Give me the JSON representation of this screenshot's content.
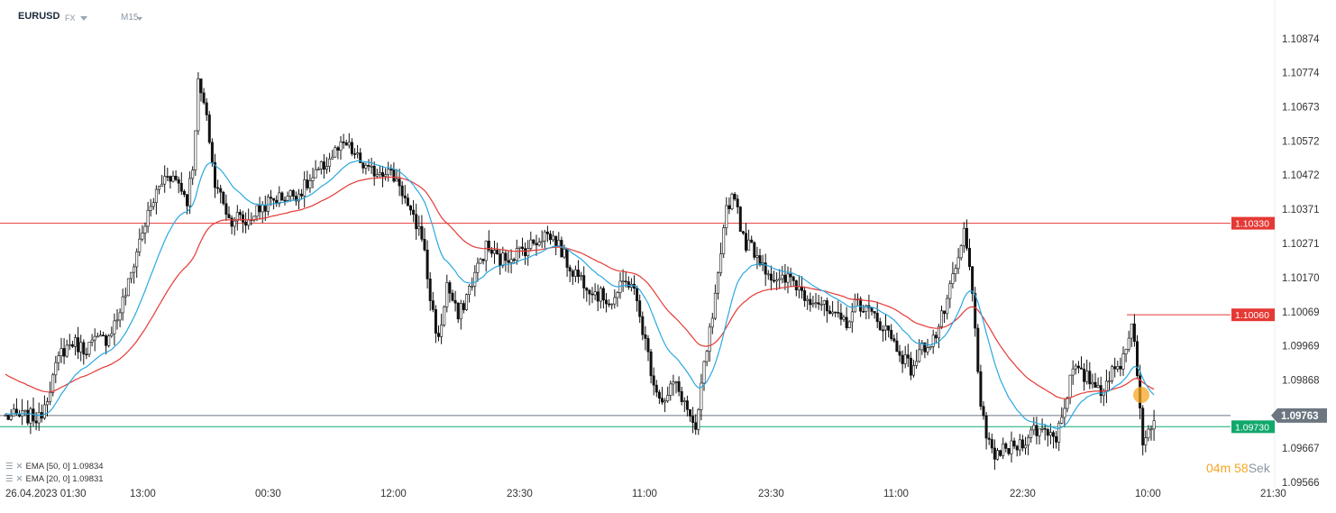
{
  "header": {
    "symbol": "EURUSD",
    "market": "FX",
    "timeframe": "M15"
  },
  "legend": [
    {
      "label": "EMA [50, 0] 1.09834",
      "color": "#e53935"
    },
    {
      "label": "EMA [20, 0] 1.09831",
      "color": "#29a8e0"
    }
  ],
  "timer": {
    "minutes": "04",
    "min_unit": "m",
    "seconds": "58",
    "sec_unit": "Sek"
  },
  "colors": {
    "candle": "#111111",
    "ema50": "#e53935",
    "ema20": "#29a8e0",
    "resistance": "#e53935",
    "support": "#11a86b",
    "current": "#6b7680",
    "marker": "#f5a623"
  },
  "chart_data": {
    "type": "candlestick",
    "symbol": "EURUSD",
    "timeframe": "M15",
    "ylim": [
      1.09566,
      1.1095
    ],
    "y_ticks": [
      "1.10874",
      "1.10774",
      "1.10673",
      "1.10572",
      "1.10472",
      "1.10371",
      "1.10271",
      "1.10170",
      "1.10069",
      "1.09969",
      "1.09868",
      "1.09667",
      "1.09566"
    ],
    "x_ticks": [
      "26.04.2023  01:30",
      "13:00",
      "00:30",
      "12:00",
      "23:30",
      "11:00",
      "23:30",
      "11:00",
      "22:30",
      "10:00",
      "21:30"
    ],
    "levels": [
      {
        "name": "resistance",
        "label": "1.10330",
        "value": 1.1033,
        "color": "#e53935"
      },
      {
        "name": "short-resistance",
        "label": "1.10060",
        "value": 1.1006,
        "color": "#e53935"
      },
      {
        "name": "current-price",
        "label": "1.09763",
        "value": 1.09763,
        "color": "#6b7680"
      },
      {
        "name": "support",
        "label": "1.09730",
        "value": 1.0973,
        "color": "#11a86b"
      }
    ],
    "close_anchors": [
      [
        0,
        1.0976
      ],
      [
        10,
        1.0976
      ],
      [
        12,
        1.0975
      ],
      [
        16,
        1.0985
      ],
      [
        20,
        1.0995
      ],
      [
        24,
        1.0998
      ],
      [
        28,
        1.0996
      ],
      [
        32,
        1.0998
      ],
      [
        36,
        1.0999
      ],
      [
        40,
        1.1005
      ],
      [
        44,
        1.1015
      ],
      [
        48,
        1.1028
      ],
      [
        50,
        1.1033
      ],
      [
        54,
        1.1042
      ],
      [
        58,
        1.1048
      ],
      [
        62,
        1.1045
      ],
      [
        65,
        1.104
      ],
      [
        67,
        1.105
      ],
      [
        69,
        1.1074
      ],
      [
        71,
        1.1068
      ],
      [
        73,
        1.1058
      ],
      [
        75,
        1.1044
      ],
      [
        78,
        1.104
      ],
      [
        80,
        1.1034
      ],
      [
        83,
        1.1035
      ],
      [
        86,
        1.1033
      ],
      [
        89,
        1.1036
      ],
      [
        92,
        1.1038
      ],
      [
        96,
        1.104
      ],
      [
        100,
        1.1041
      ],
      [
        105,
        1.1042
      ],
      [
        110,
        1.1046
      ],
      [
        114,
        1.105
      ],
      [
        118,
        1.1054
      ],
      [
        122,
        1.1056
      ],
      [
        126,
        1.1052
      ],
      [
        130,
        1.1048
      ],
      [
        136,
        1.1049
      ],
      [
        141,
        1.1045
      ],
      [
        145,
        1.1035
      ],
      [
        149,
        1.103
      ],
      [
        152,
        1.1011
      ],
      [
        155,
        1.0998
      ],
      [
        158,
        1.1015
      ],
      [
        162,
        1.1005
      ],
      [
        167,
        1.1016
      ],
      [
        172,
        1.1026
      ],
      [
        177,
        1.1022
      ],
      [
        182,
        1.1024
      ],
      [
        187,
        1.1026
      ],
      [
        193,
        1.103
      ],
      [
        197,
        1.1028
      ],
      [
        202,
        1.102
      ],
      [
        207,
        1.1016
      ],
      [
        212,
        1.1012
      ],
      [
        217,
        1.101
      ],
      [
        221,
        1.1015
      ],
      [
        224,
        1.1016
      ],
      [
        228,
        1.1002
      ],
      [
        231,
        1.099
      ],
      [
        233,
        1.0984
      ],
      [
        236,
        1.098
      ],
      [
        239,
        1.0986
      ],
      [
        242,
        1.0982
      ],
      [
        245,
        1.0976
      ],
      [
        247,
        1.097
      ],
      [
        249,
        1.0985
      ],
      [
        251,
        1.0996
      ],
      [
        253,
        1.1005
      ],
      [
        256,
        1.1022
      ],
      [
        258,
        1.1038
      ],
      [
        261,
        1.1042
      ],
      [
        264,
        1.1028
      ],
      [
        268,
        1.1025
      ],
      [
        272,
        1.102
      ],
      [
        276,
        1.1015
      ],
      [
        281,
        1.1017
      ],
      [
        286,
        1.1012
      ],
      [
        291,
        1.101
      ],
      [
        296,
        1.1005
      ],
      [
        301,
        1.1004
      ],
      [
        305,
        1.101
      ],
      [
        310,
        1.1006
      ],
      [
        315,
        1.1002
      ],
      [
        320,
        1.0995
      ],
      [
        324,
        1.099
      ],
      [
        328,
        1.0996
      ],
      [
        333,
        1.1
      ],
      [
        337,
        1.101
      ],
      [
        341,
        1.1022
      ],
      [
        343,
        1.103
      ],
      [
        345,
        1.102
      ],
      [
        347,
        1.1002
      ],
      [
        349,
        1.098
      ],
      [
        351,
        1.0968
      ],
      [
        354,
        1.0965
      ],
      [
        358,
        1.0966
      ],
      [
        363,
        1.0968
      ],
      [
        368,
        1.0972
      ],
      [
        373,
        1.0972
      ],
      [
        376,
        1.097
      ],
      [
        379,
        1.098
      ],
      [
        382,
        1.099
      ],
      [
        385,
        1.0988
      ],
      [
        388,
        1.0987
      ],
      [
        392,
        1.0984
      ],
      [
        395,
        1.0988
      ],
      [
        398,
        1.099
      ],
      [
        401,
        1.0996
      ],
      [
        403,
        1.1005
      ],
      [
        405,
        1.099
      ],
      [
        407,
        1.0966
      ],
      [
        409,
        1.0972
      ],
      [
        411,
        1.0976
      ]
    ]
  }
}
